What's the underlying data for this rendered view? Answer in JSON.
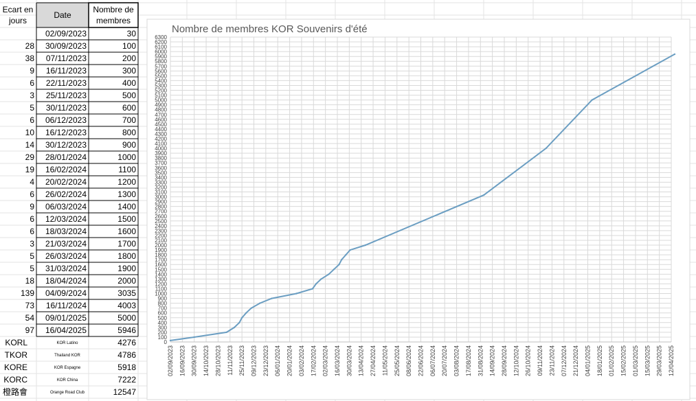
{
  "table": {
    "headers": [
      "Ecart en\njours",
      "Date",
      "Nombre de\nmembres"
    ],
    "rows": [
      {
        "ecart": "",
        "date": "02/09/2023",
        "membres": "30"
      },
      {
        "ecart": "28",
        "date": "30/09/2023",
        "membres": "100"
      },
      {
        "ecart": "38",
        "date": "07/11/2023",
        "membres": "200"
      },
      {
        "ecart": "9",
        "date": "16/11/2023",
        "membres": "300"
      },
      {
        "ecart": "6",
        "date": "22/11/2023",
        "membres": "400"
      },
      {
        "ecart": "3",
        "date": "25/11/2023",
        "membres": "500"
      },
      {
        "ecart": "5",
        "date": "30/11/2023",
        "membres": "600"
      },
      {
        "ecart": "6",
        "date": "06/12/2023",
        "membres": "700"
      },
      {
        "ecart": "10",
        "date": "16/12/2023",
        "membres": "800"
      },
      {
        "ecart": "14",
        "date": "30/12/2023",
        "membres": "900"
      },
      {
        "ecart": "29",
        "date": "28/01/2024",
        "membres": "1000"
      },
      {
        "ecart": "19",
        "date": "16/02/2024",
        "membres": "1100"
      },
      {
        "ecart": "4",
        "date": "20/02/2024",
        "membres": "1200"
      },
      {
        "ecart": "6",
        "date": "26/02/2024",
        "membres": "1300"
      },
      {
        "ecart": "9",
        "date": "06/03/2024",
        "membres": "1400"
      },
      {
        "ecart": "6",
        "date": "12/03/2024",
        "membres": "1500"
      },
      {
        "ecart": "6",
        "date": "18/03/2024",
        "membres": "1600"
      },
      {
        "ecart": "3",
        "date": "21/03/2024",
        "membres": "1700"
      },
      {
        "ecart": "5",
        "date": "26/03/2024",
        "membres": "1800"
      },
      {
        "ecart": "5",
        "date": "31/03/2024",
        "membres": "1900"
      },
      {
        "ecart": "18",
        "date": "18/04/2024",
        "membres": "2000"
      },
      {
        "ecart": "139",
        "date": "04/09/2024",
        "membres": "3035"
      },
      {
        "ecart": "73",
        "date": "16/11/2024",
        "membres": "4003"
      },
      {
        "ecart": "54",
        "date": "09/01/2025",
        "membres": "5000"
      },
      {
        "ecart": "97",
        "date": "16/04/2025",
        "membres": "5946"
      }
    ],
    "groups": [
      {
        "code": "KORL",
        "name": "KOR Latino",
        "membres": "4276"
      },
      {
        "code": "TKOR",
        "name": "Thailand KOR",
        "membres": "4786"
      },
      {
        "code": "KORE",
        "name": "KOR Espagne",
        "membres": "5918"
      },
      {
        "code": "KORC",
        "name": "KOR China",
        "membres": "7222"
      },
      {
        "code": "橙路會",
        "name": "Orange Road Club",
        "membres": "12547"
      }
    ]
  },
  "colors": {
    "line": "#6b9ec2",
    "grid": "#d9d9d9",
    "title": "#595959"
  },
  "chart_data": {
    "type": "line",
    "title": "Nombre de membres KOR Souvenirs d'été",
    "xlabel": "",
    "ylabel": "",
    "x_axis": "date",
    "grid": true,
    "legend": "none",
    "ylim": [
      0,
      6300
    ],
    "y_tick_step": 100,
    "x_ticks": [
      "02/09/2023",
      "16/09/2023",
      "30/09/2023",
      "14/10/2023",
      "28/10/2023",
      "11/11/2023",
      "25/11/2023",
      "09/12/2023",
      "23/12/2023",
      "06/01/2024",
      "20/01/2024",
      "03/02/2024",
      "17/02/2024",
      "02/03/2024",
      "16/03/2024",
      "30/03/2024",
      "13/04/2024",
      "27/04/2024",
      "11/05/2024",
      "25/05/2024",
      "08/06/2024",
      "22/06/2024",
      "06/07/2024",
      "20/07/2024",
      "03/08/2024",
      "17/08/2024",
      "31/08/2024",
      "14/09/2024",
      "28/09/2024",
      "12/10/2024",
      "26/10/2024",
      "09/11/2024",
      "23/11/2024",
      "07/12/2024",
      "21/12/2024",
      "04/01/2025",
      "18/01/2025",
      "01/02/2025",
      "15/02/2025",
      "01/03/2025",
      "15/03/2025",
      "29/03/2025",
      "12/04/2025"
    ],
    "series": [
      {
        "x": [
          "02/09/2023",
          "30/09/2023",
          "07/11/2023",
          "16/11/2023",
          "22/11/2023",
          "25/11/2023",
          "30/11/2023",
          "06/12/2023",
          "16/12/2023",
          "30/12/2023",
          "28/01/2024",
          "16/02/2024",
          "20/02/2024",
          "26/02/2024",
          "06/03/2024",
          "12/03/2024",
          "18/03/2024",
          "21/03/2024",
          "26/03/2024",
          "31/03/2024",
          "18/04/2024",
          "04/09/2024",
          "16/11/2024",
          "09/01/2025",
          "16/04/2025"
        ],
        "y": [
          30,
          100,
          200,
          300,
          400,
          500,
          600,
          700,
          800,
          900,
          1000,
          1100,
          1200,
          1300,
          1400,
          1500,
          1600,
          1700,
          1800,
          1900,
          2000,
          3035,
          4003,
          5000,
          5946
        ]
      }
    ]
  }
}
